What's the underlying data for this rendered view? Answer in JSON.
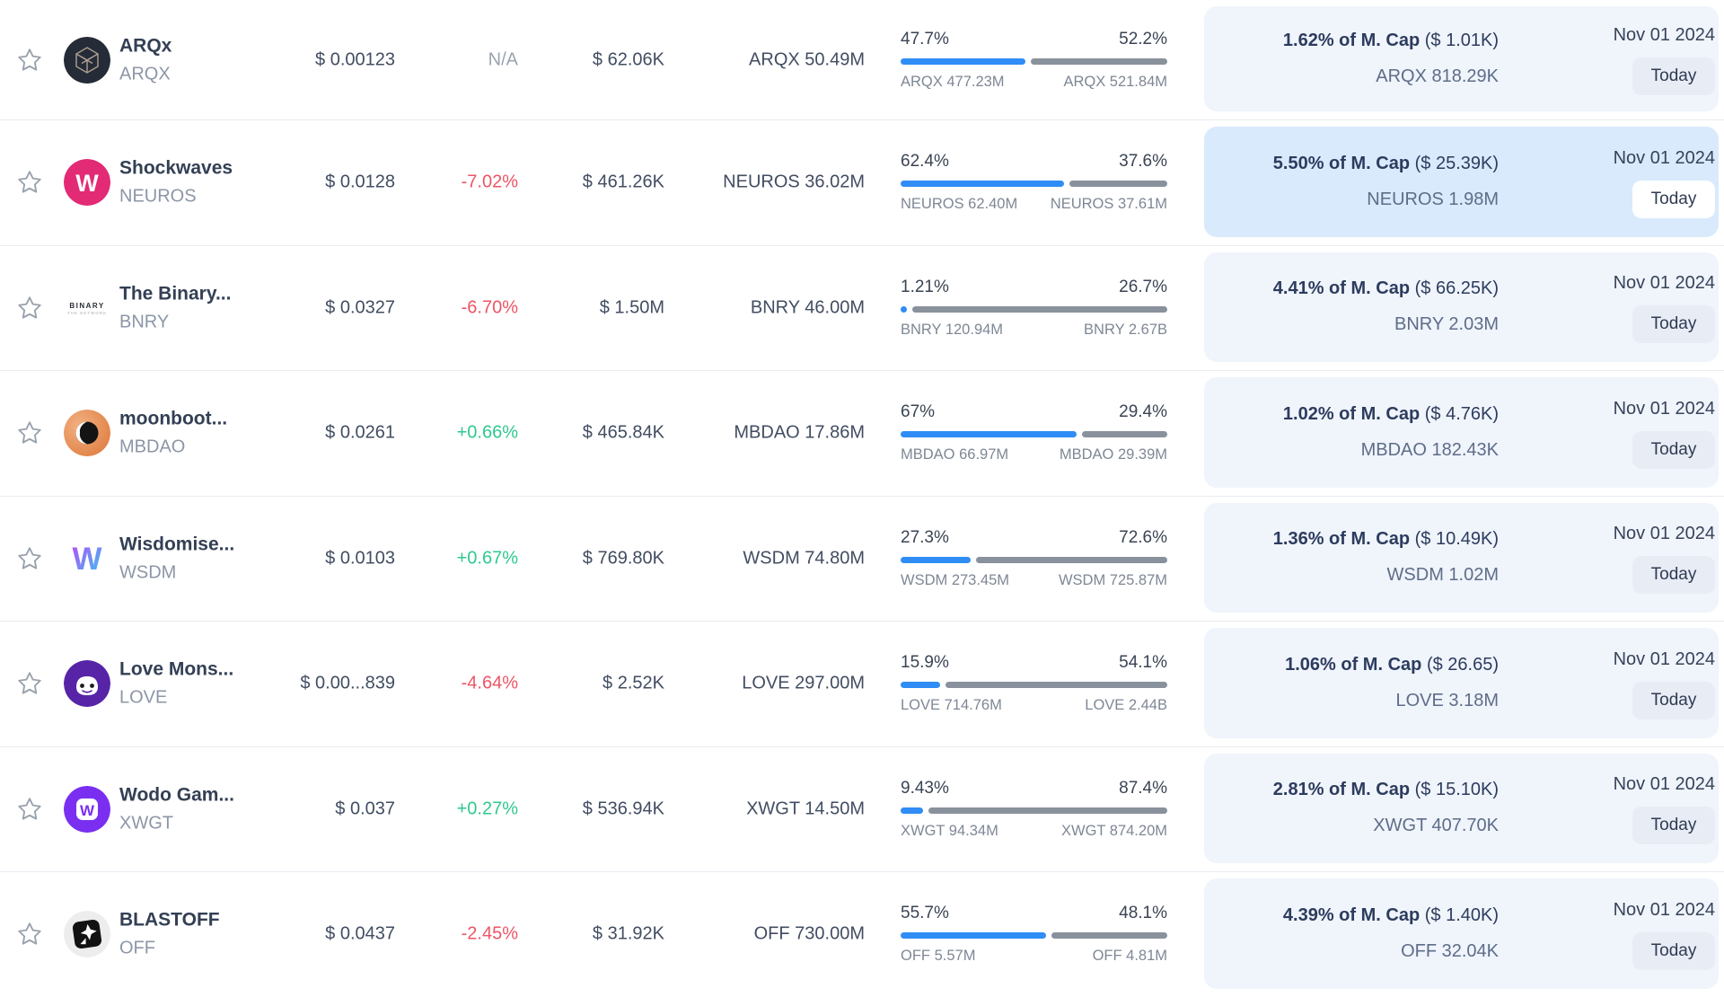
{
  "colors": {
    "bar_filled": "#2f8df5",
    "bar_rest": "#89919c",
    "change_up": "#2fc98e",
    "change_down": "#ed5565",
    "change_neutral": "#9aa3b0",
    "card_bg": "#f0f4fb",
    "card_bg_highlight": "#d9eafc",
    "badge_bg": "#e8ecf4",
    "badge_bg_on_highlight": "#ffffff"
  },
  "rows": [
    {
      "name": "ARQx",
      "symbol": "ARQX",
      "price": "$ 0.00123",
      "change": "N/A",
      "change_dir": "neutral",
      "volume": "$ 62.06K",
      "amount": "ARQX 50.49M",
      "bar": {
        "left_label": "47.7%",
        "right_label": "52.2%",
        "left_value": 47.7,
        "left_sub": "ARQX 477.23M",
        "right_sub": "ARQX 521.84M"
      },
      "mcap": {
        "bold": "1.62% of M. Cap",
        "paren": "($ 1.01K)",
        "sub": "ARQX 818.29K",
        "highlight": false
      },
      "date": "Nov 01 2024",
      "badge": "Today",
      "logo": {
        "kind": "cube",
        "icon": "arqx-cube-logo",
        "bg": "#252b37",
        "fg": "#bfae9c"
      }
    },
    {
      "name": "Shockwaves",
      "symbol": "NEUROS",
      "price": "$ 0.0128",
      "change": "-7.02%",
      "change_dir": "down",
      "volume": "$ 461.26K",
      "amount": "NEUROS 36.02M",
      "bar": {
        "left_label": "62.4%",
        "right_label": "37.6%",
        "left_value": 62.4,
        "left_sub": "NEUROS 62.40M",
        "right_sub": "NEUROS 37.61M"
      },
      "mcap": {
        "bold": "5.50% of M. Cap",
        "paren": "($ 25.39K)",
        "sub": "NEUROS 1.98M",
        "highlight": true
      },
      "date": "Nov 01 2024",
      "badge": "Today",
      "logo": {
        "kind": "letter",
        "icon": "shockwaves-logo",
        "bg": "#e22a75",
        "fg": "#ffffff",
        "text": "W"
      }
    },
    {
      "name": "The Binary...",
      "symbol": "BNRY",
      "price": "$ 0.0327",
      "change": "-6.70%",
      "change_dir": "down",
      "volume": "$ 1.50M",
      "amount": "BNRY 46.00M",
      "bar": {
        "left_label": "1.21%",
        "right_label": "26.7%",
        "left_value": 1.21,
        "left_sub": "BNRY 120.94M",
        "right_sub": "BNRY 2.67B"
      },
      "mcap": {
        "bold": "4.41% of M. Cap",
        "paren": "($ 66.25K)",
        "sub": "BNRY 2.03M",
        "highlight": false
      },
      "date": "Nov 01 2024",
      "badge": "Today",
      "logo": {
        "kind": "binary",
        "icon": "binary-network-logo",
        "bg": "#ffffff",
        "t1": "BINARY",
        "t2": "THE NETWORK"
      }
    },
    {
      "name": "moonboot...",
      "symbol": "MBDAO",
      "price": "$ 0.0261",
      "change": "+0.66%",
      "change_dir": "up",
      "volume": "$ 465.84K",
      "amount": "MBDAO 17.86M",
      "bar": {
        "left_label": "67%",
        "right_label": "29.4%",
        "left_value": 67,
        "left_sub": "MBDAO 66.97M",
        "right_sub": "MBDAO 29.39M"
      },
      "mcap": {
        "bold": "1.02% of M. Cap",
        "paren": "($ 4.76K)",
        "sub": "MBDAO 182.43K",
        "highlight": false
      },
      "date": "Nov 01 2024",
      "badge": "Today",
      "logo": {
        "kind": "moon",
        "icon": "moonboots-logo",
        "bg": "#e88a50"
      }
    },
    {
      "name": "Wisdomise...",
      "symbol": "WSDM",
      "price": "$ 0.0103",
      "change": "+0.67%",
      "change_dir": "up",
      "volume": "$ 769.80K",
      "amount": "WSDM 74.80M",
      "bar": {
        "left_label": "27.3%",
        "right_label": "72.6%",
        "left_value": 27.3,
        "left_sub": "WSDM 273.45M",
        "right_sub": "WSDM 725.87M"
      },
      "mcap": {
        "bold": "1.36% of M. Cap",
        "paren": "($ 10.49K)",
        "sub": "WSDM 1.02M",
        "highlight": false
      },
      "date": "Nov 01 2024",
      "badge": "Today",
      "logo": {
        "kind": "gradw",
        "icon": "wisdomise-logo",
        "g1": "#b84bf5",
        "g2": "#38c6f4"
      }
    },
    {
      "name": "Love Mons...",
      "symbol": "LOVE",
      "price": "$ 0.00...839",
      "change": "-4.64%",
      "change_dir": "down",
      "volume": "$ 2.52K",
      "amount": "LOVE 297.00M",
      "bar": {
        "left_label": "15.9%",
        "right_label": "54.1%",
        "left_value": 15.9,
        "left_sub": "LOVE 714.76M",
        "right_sub": "LOVE 2.44B"
      },
      "mcap": {
        "bold": "1.06% of M. Cap",
        "paren": "($ 26.65)",
        "sub": "LOVE 3.18M",
        "highlight": false
      },
      "date": "Nov 01 2024",
      "badge": "Today",
      "logo": {
        "kind": "monster",
        "icon": "love-monster-logo",
        "bg": "#5724a8"
      }
    },
    {
      "name": "Wodo Gam...",
      "symbol": "XWGT",
      "price": "$ 0.037",
      "change": "+0.27%",
      "change_dir": "up",
      "volume": "$ 536.94K",
      "amount": "XWGT 14.50M",
      "bar": {
        "left_label": "9.43%",
        "right_label": "87.4%",
        "left_value": 9.43,
        "left_sub": "XWGT 94.34M",
        "right_sub": "XWGT 874.20M"
      },
      "mcap": {
        "bold": "2.81% of M. Cap",
        "paren": "($ 15.10K)",
        "sub": "XWGT 407.70K",
        "highlight": false
      },
      "date": "Nov 01 2024",
      "badge": "Today",
      "logo": {
        "kind": "squarew",
        "icon": "wodo-gaming-logo",
        "bg": "#7a2ff0",
        "fg": "#ffffff"
      }
    },
    {
      "name": "BLASTOFF",
      "symbol": "OFF",
      "price": "$ 0.0437",
      "change": "-2.45%",
      "change_dir": "down",
      "volume": "$ 31.92K",
      "amount": "OFF 730.00M",
      "bar": {
        "left_label": "55.7%",
        "right_label": "48.1%",
        "left_value": 55.7,
        "left_sub": "OFF 5.57M",
        "right_sub": "OFF 4.81M"
      },
      "mcap": {
        "bold": "4.39% of M. Cap",
        "paren": "($ 1.40K)",
        "sub": "OFF 32.04K",
        "highlight": false
      },
      "date": "Nov 01 2024",
      "badge": "Today",
      "logo": {
        "kind": "rocket",
        "icon": "blastoff-logo",
        "bg": "#ededee"
      }
    }
  ]
}
